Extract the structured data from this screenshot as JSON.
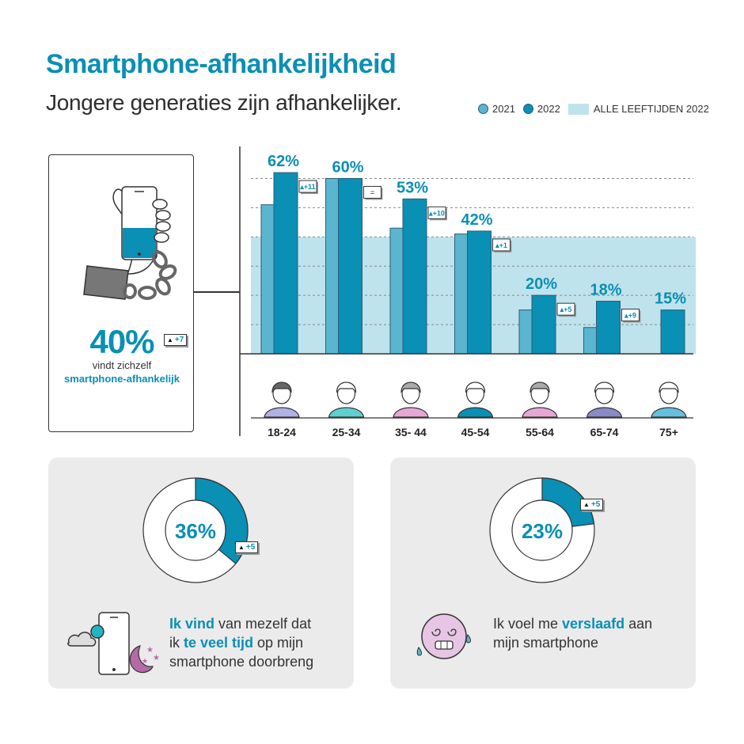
{
  "title": "Smartphone-afhankelijkheid",
  "subtitle": "Jongere generaties zijn afhankelijker.",
  "legend": {
    "y2021": "2021",
    "y2022": "2022",
    "all": "ALLE LEEFTIJDEN 2022"
  },
  "colors": {
    "accent": "#0a8fb5",
    "bar2021": "#5bb5cf",
    "bar2022": "#0a8fb5",
    "band": "#bfe3ec",
    "panel": "#ebebeb"
  },
  "overall": {
    "value": "40%",
    "change": "+7",
    "line1": "vindt zichzelf",
    "line2": "smartphone-afhankelijk"
  },
  "chart_data": {
    "type": "bar",
    "categories": [
      "18-24",
      "25-34",
      "35- 44",
      "45-54",
      "55-64",
      "65-74",
      "75+"
    ],
    "series": [
      {
        "name": "2021",
        "values": [
          51,
          60,
          43,
          41,
          15,
          9,
          null
        ]
      },
      {
        "name": "2022",
        "values": [
          62,
          60,
          53,
          42,
          20,
          18,
          15
        ]
      }
    ],
    "labels2022": [
      "62%",
      "60%",
      "53%",
      "42%",
      "20%",
      "18%",
      "15%"
    ],
    "changes": [
      "+11",
      "=",
      "+10",
      "+1",
      "+5",
      "+9",
      ""
    ],
    "reference_band": {
      "name": "ALLE LEEFTIJDEN 2022",
      "value": 40
    },
    "ylim": [
      0,
      65
    ],
    "grid": true,
    "legend_position": "top-right"
  },
  "panels": {
    "left": {
      "value": "36%",
      "fraction": 0.36,
      "change": "+5",
      "caption_b1": "Ik vind",
      "caption_t1": " van mezelf dat",
      "caption_t2": "ik ",
      "caption_b2": "te veel tijd",
      "caption_t3": " op mijn",
      "caption_t4": "smartphone doorbreng"
    },
    "right": {
      "value": "23%",
      "fraction": 0.23,
      "change": "+5",
      "caption_t1": "Ik voel me ",
      "caption_b1": "verslaafd",
      "caption_t2": " aan",
      "caption_t3": "mijn smartphone"
    }
  }
}
